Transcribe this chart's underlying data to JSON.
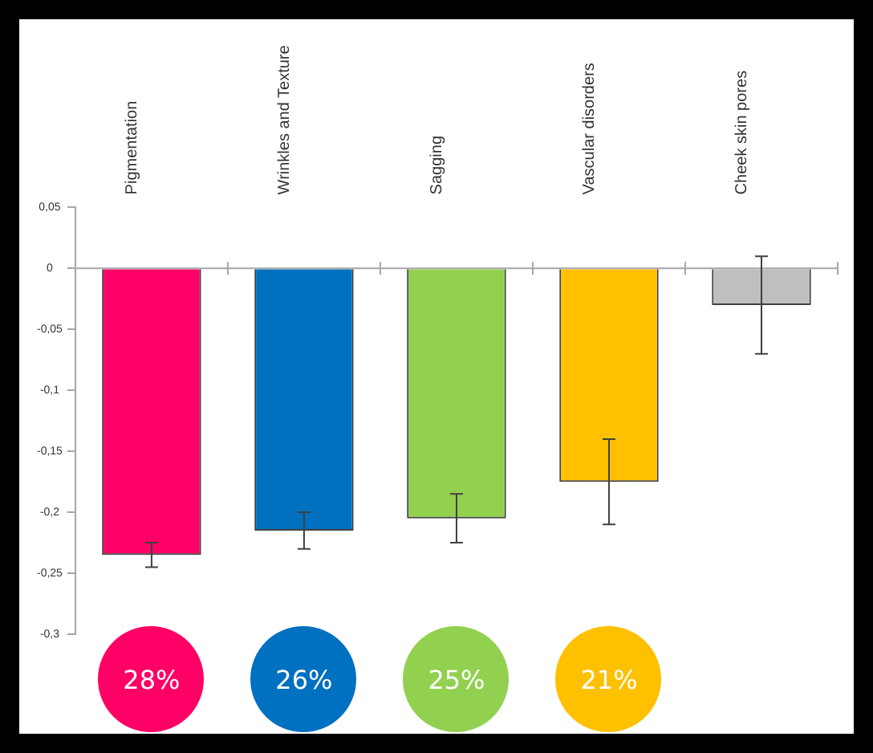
{
  "chart_data": {
    "type": "bar",
    "categories": [
      "Pigmentation",
      "Wrinkles and Texture",
      "Sagging",
      "Vascular disorders",
      "Cheek skin pores"
    ],
    "values": [
      -0.235,
      -0.215,
      -0.205,
      -0.175,
      -0.03
    ],
    "errors": [
      0.01,
      0.015,
      0.02,
      0.035,
      0.04
    ],
    "colors": [
      "#ff0066",
      "#0070c0",
      "#92d050",
      "#ffc000",
      "#bfbfbf"
    ],
    "ylim": [
      -0.3,
      0.05
    ],
    "yticks": [
      {
        "value": 0.05,
        "label": "0,05"
      },
      0,
      {
        "value": -0.05,
        "label": "-0,05"
      },
      {
        "value": -0.1,
        "label": "-0,1"
      },
      {
        "value": -0.15,
        "label": "-0,15"
      },
      {
        "value": -0.2,
        "label": "-0,2"
      },
      {
        "value": -0.25,
        "label": "-0,25"
      },
      {
        "value": -0.3,
        "label": "-0,3"
      }
    ],
    "grid": false,
    "legend": false,
    "ref_lines": [
      {
        "axis": "y",
        "value": 0,
        "color": "#a6a6a6"
      }
    ],
    "annotations": [
      "28%",
      "26%",
      "25%",
      "21%"
    ]
  }
}
